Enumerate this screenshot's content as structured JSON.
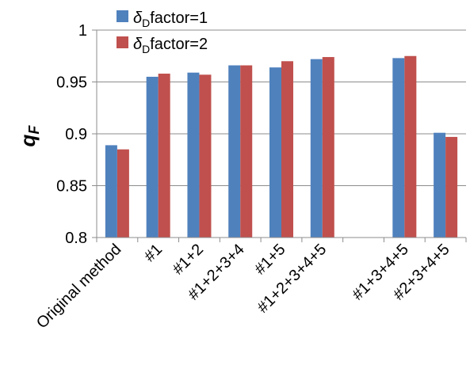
{
  "chart_data": {
    "type": "bar",
    "categories": [
      "Original method",
      "#1",
      "#1+2",
      "#1+2+3+4",
      "#1+5",
      "#1+2+3+4+5",
      "",
      "#1+3+4+5",
      "#2+3+4+5"
    ],
    "series": [
      {
        "name_symbol": "δ",
        "name_subscript": "D",
        "name_text": "factor=1",
        "color": "#4f81bd",
        "values": [
          0.889,
          0.955,
          0.959,
          0.966,
          0.964,
          0.972,
          null,
          0.973,
          0.901
        ]
      },
      {
        "name_symbol": "δ",
        "name_subscript": "D",
        "name_text": "factor=2",
        "color": "#c0504d",
        "values": [
          0.885,
          0.958,
          0.957,
          0.966,
          0.97,
          0.974,
          null,
          0.975,
          0.897
        ]
      }
    ],
    "ylabel": "q",
    "ylabel_subscript": "F",
    "ylim": [
      0.8,
      1.0
    ],
    "yticks": [
      "0.8",
      "0.85",
      "0.9",
      "0.95",
      "1"
    ],
    "grid": true,
    "legend_position": "top-left"
  }
}
